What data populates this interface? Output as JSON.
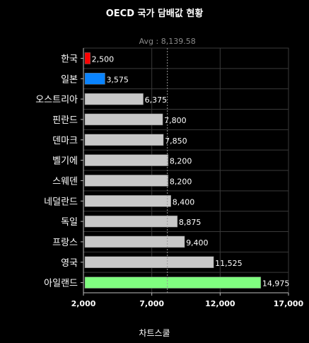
{
  "chart_data": {
    "type": "bar",
    "orientation": "horizontal",
    "title": "OECD 국가 담배값 현황",
    "xlabel": "차트스쿨",
    "ylabel": "",
    "categories": [
      "한국",
      "일본",
      "오스트리아",
      "핀란드",
      "덴마크",
      "벨기에",
      "스웨덴",
      "네덜란드",
      "독일",
      "프랑스",
      "영국",
      "아일랜드"
    ],
    "values": [
      2500,
      3575,
      6375,
      7800,
      7850,
      8200,
      8200,
      8400,
      8875,
      9400,
      11525,
      14975
    ],
    "value_labels": [
      "2,500",
      "3,575",
      "6,375",
      "7,800",
      "7,850",
      "8,200",
      "8,200",
      "8,400",
      "8,875",
      "9,400",
      "11,525",
      "14,975"
    ],
    "bar_colors": [
      "#ff0000",
      "#0a84ff",
      "#c8c8c8",
      "#c8c8c8",
      "#c8c8c8",
      "#c8c8c8",
      "#c8c8c8",
      "#c8c8c8",
      "#c8c8c8",
      "#c8c8c8",
      "#c8c8c8",
      "#80ff80"
    ],
    "xlim": [
      2000,
      17000
    ],
    "xticks": [
      2000,
      7000,
      12000,
      17000
    ],
    "xtick_labels": [
      "2,000",
      "7,000",
      "12,000",
      "17,000"
    ],
    "average": {
      "value": 8139.58,
      "label": "Avg : 8,139.58"
    },
    "grid": true,
    "legend": "none"
  },
  "colors": {
    "background": "#000000",
    "grid": "#3a3a3a",
    "axis": "#bdbdbd",
    "avg_line": "#9a9a9a"
  }
}
